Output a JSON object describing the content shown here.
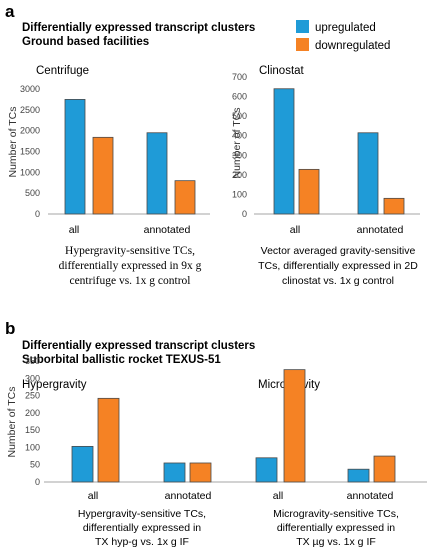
{
  "panel_a": {
    "letter": "a",
    "heading_lines": [
      "Differentially expressed transcript clusters",
      "Ground based facilities"
    ],
    "captions": [
      [
        "Hypergravity-sensitive TCs,",
        "differentially expressed in 9x g",
        "centrifuge vs. 1x g control"
      ],
      [
        "Vector averaged gravity-sensitive",
        "TCs, differentially expressed in 2D",
        "clinostat vs. 1x g control"
      ]
    ]
  },
  "panel_b": {
    "letter": "b",
    "heading_lines": [
      "Differentially expressed transcript clusters",
      "Suborbital ballistic rocket TEXUS-51"
    ],
    "captions": [
      [
        "Hypergravity-sensitive TCs,",
        "differentially expressed in",
        "TX hyp-g vs. 1x g IF"
      ],
      [
        "Microgravity-sensitive TCs,",
        "differentially expressed in",
        "TX µg vs. 1x g IF"
      ]
    ]
  },
  "legend": {
    "placement": "top-right",
    "entries": [
      {
        "label": "upregulated",
        "color": "#1f9bd7"
      },
      {
        "label": "downregulated",
        "color": "#f58224"
      }
    ]
  },
  "colors": {
    "upregulated": "#1f9bd7",
    "downregulated": "#f58224"
  },
  "chart_data": [
    {
      "type": "bar",
      "title": "Centrifuge",
      "ylabel": "Number of TCs",
      "xlabel": "",
      "categories": [
        "all",
        "annotated"
      ],
      "series": [
        {
          "name": "upregulated",
          "values": [
            2750,
            1950
          ]
        },
        {
          "name": "downregulated",
          "values": [
            1840,
            800
          ]
        }
      ],
      "ylim": [
        0,
        3000
      ],
      "yticks": [
        0,
        500,
        1000,
        1500,
        2000,
        2500,
        3000
      ],
      "grid": false
    },
    {
      "type": "bar",
      "title": "Clinostat",
      "ylabel": "Number of TCs",
      "xlabel": "",
      "categories": [
        "all",
        "annotated"
      ],
      "series": [
        {
          "name": "upregulated",
          "values": [
            640,
            415
          ]
        },
        {
          "name": "downregulated",
          "values": [
            228,
            80
          ]
        }
      ],
      "ylim": [
        0,
        700
      ],
      "yticks": [
        0,
        100,
        200,
        300,
        400,
        500,
        600,
        700
      ],
      "grid": false
    },
    {
      "type": "bar",
      "title": "Hypergravity",
      "ylabel": "Number of TCs",
      "xlabel": "",
      "categories": [
        "all",
        "annotated"
      ],
      "series": [
        {
          "name": "upregulated",
          "values": [
            103,
            55
          ]
        },
        {
          "name": "downregulated",
          "values": [
            242,
            55
          ]
        }
      ],
      "ylim": [
        0,
        350
      ],
      "yticks": [
        0,
        50,
        100,
        150,
        200,
        250,
        300,
        350
      ],
      "grid": false
    },
    {
      "type": "bar",
      "title": "Microgravity",
      "ylabel": "",
      "xlabel": "",
      "categories": [
        "all",
        "annotated"
      ],
      "series": [
        {
          "name": "upregulated",
          "values": [
            70,
            37
          ]
        },
        {
          "name": "downregulated",
          "values": [
            325,
            75
          ]
        }
      ],
      "ylim": [
        0,
        350
      ],
      "grid": false
    }
  ]
}
